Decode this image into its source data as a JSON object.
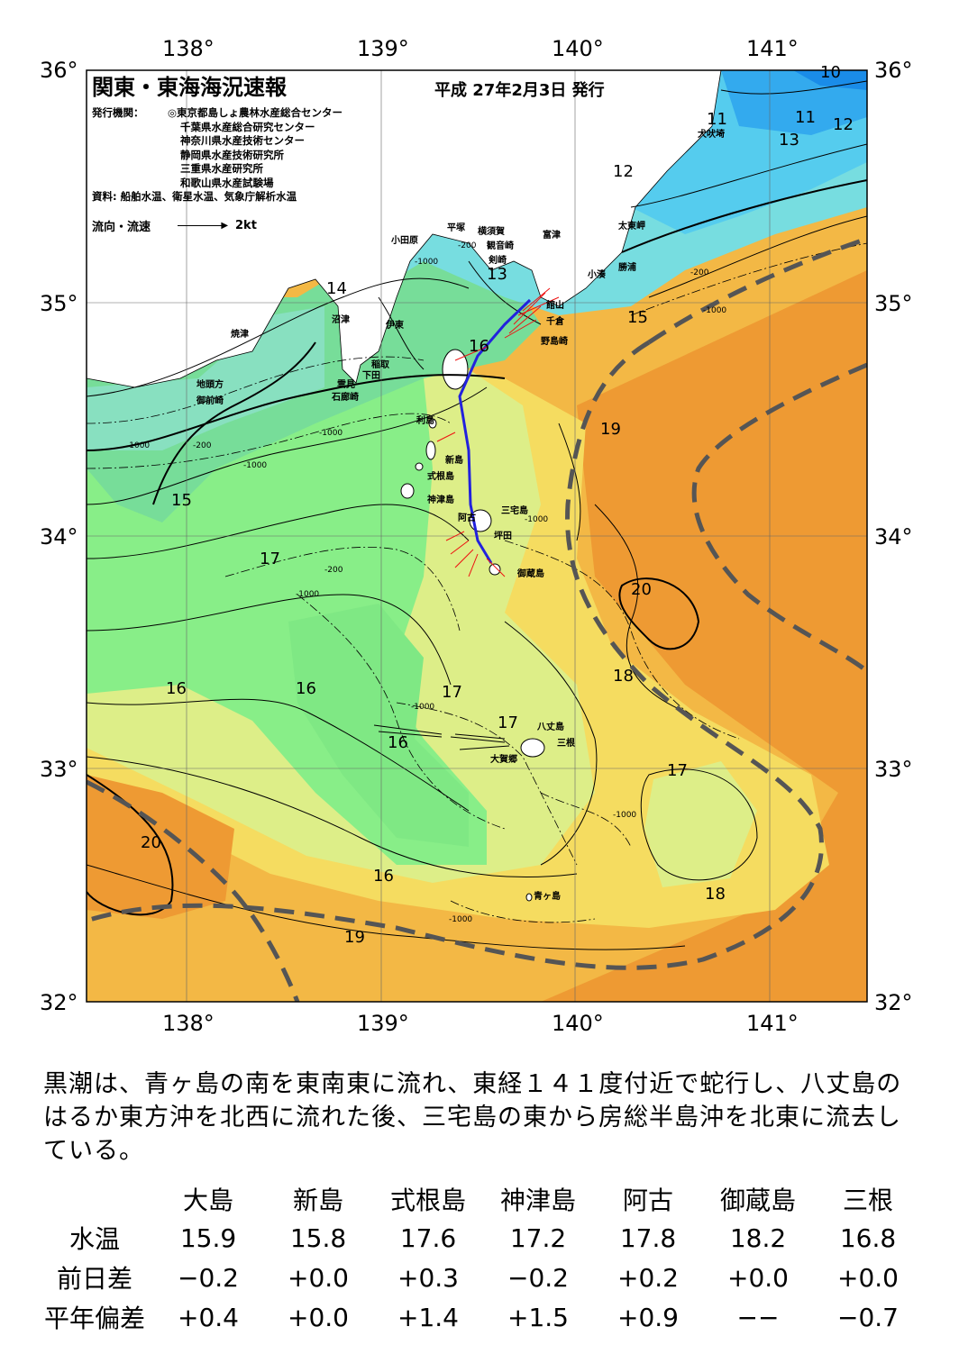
{
  "header": {
    "title": "関東・東海海況速報",
    "date": "平成 27年2月3日 発行",
    "publisher_label": "発行機関：",
    "publishers": [
      "◎東京都島しょ農林水産総合センター",
      "千葉県水産総合研究センター",
      "神奈川県水産技術センター",
      "静岡県水産技術研究所",
      "三重県水産研究所",
      "和歌山県水産試験場"
    ],
    "source": "資料: 船舶水温、衛星水温、気象庁解析水温",
    "legend_label": "流向・流速",
    "legend_scale": "2kt"
  },
  "axes": {
    "lon_labels": [
      "138°",
      "139°",
      "140°",
      "141°"
    ],
    "lat_labels": [
      "36°",
      "35°",
      "34°",
      "33°",
      "32°"
    ]
  },
  "isotherm_labels": [
    "10",
    "11",
    "11",
    "12",
    "13",
    "12",
    "13",
    "14",
    "15",
    "15",
    "16",
    "19",
    "15",
    "17",
    "20",
    "16",
    "16",
    "17",
    "18",
    "17",
    "16",
    "17",
    "20",
    "16",
    "18",
    "19"
  ],
  "depth_labels": [
    "-200",
    "-1000",
    "-1000",
    "-200",
    "-1000",
    "-200",
    "-1000",
    "-200",
    "-1000",
    "-1000",
    "-1000",
    "-1000",
    "-1000",
    "-1000"
  ],
  "place_names": [
    "犬吠埼",
    "太東岬",
    "勝浦",
    "小湊",
    "富津",
    "横須賀",
    "観音崎",
    "剣崎",
    "平塚",
    "小田原",
    "野島崎",
    "千倉",
    "館山",
    "沼津",
    "伊東",
    "稲取",
    "下田",
    "雲見",
    "石廊崎",
    "焼津",
    "地頭方",
    "御前崎",
    "利島",
    "新島",
    "式根島",
    "神津島",
    "阿古",
    "三宅島",
    "坪田",
    "御蔵島",
    "八丈島",
    "三根",
    "大賀郷",
    "青ヶ島"
  ],
  "summary": "黒潮は、青ヶ島の南を東南東に流れ、東経１４１度付近で蛇行し、八丈島のはるか東方沖を北西に流れた後、三宅島の東から房総半島沖を北東に流去している。",
  "table": {
    "columns": [
      "大島",
      "新島",
      "式根島",
      "神津島",
      "阿古",
      "御蔵島",
      "三根"
    ],
    "rows": [
      {
        "label": "水温",
        "values": [
          "15.9",
          "15.8",
          "17.6",
          "17.2",
          "17.8",
          "18.2",
          "16.8"
        ]
      },
      {
        "label": "前日差",
        "values": [
          "−0.2",
          "+0.0",
          "+0.3",
          "−0.2",
          "+0.2",
          "+0.0",
          "+0.0"
        ]
      },
      {
        "label": "平年偏差",
        "values": [
          "+0.4",
          "+0.0",
          "+1.4",
          "+1.5",
          "+0.9",
          "−−",
          "−0.7"
        ]
      }
    ]
  },
  "colors": {
    "sst_10": "#1a8ce8",
    "sst_11": "#33aaee",
    "sst_12": "#55ccee",
    "sst_13": "#77dde0",
    "sst_14": "#88e0c0",
    "sst_15": "#77dd99",
    "sst_16": "#88ee88",
    "sst_17": "#ddee88",
    "sst_18": "#f5dc60",
    "sst_19": "#f3b845",
    "sst_20": "#ee9a33",
    "kuroshio_axis": "#555555",
    "ship_track": "#2222dd",
    "current_vectors": "#ee1111"
  }
}
